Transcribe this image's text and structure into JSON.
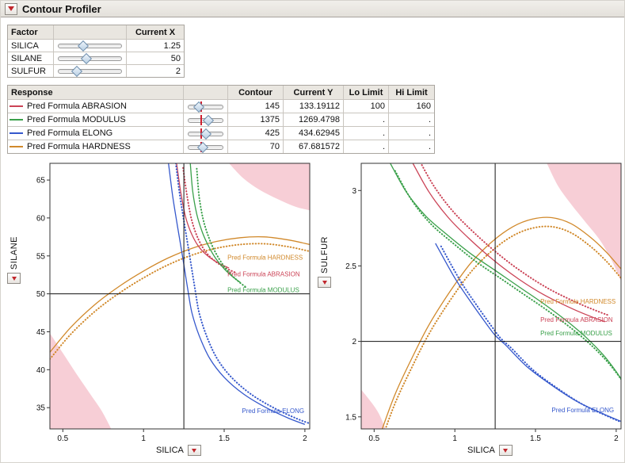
{
  "window": {
    "title": "Contour Profiler"
  },
  "icons": {
    "disclosure": "red-triangle-down",
    "axis_menu": "red-triangle-down"
  },
  "colors": {
    "accent_red": "#c1272d",
    "limit_shade": "#f7ced6",
    "header_bg": "#e9e6e0"
  },
  "factor_panel": {
    "headers": {
      "factor": "Factor",
      "current_x": "Current X"
    },
    "rows": [
      {
        "name": "SILICA",
        "value": "1.25",
        "slider_pos": 0.4
      },
      {
        "name": "SILANE",
        "value": "50",
        "slider_pos": 0.45
      },
      {
        "name": "SULFUR",
        "value": "2",
        "slider_pos": 0.3
      }
    ]
  },
  "response_panel": {
    "headers": {
      "response": "Response",
      "contour": "Contour",
      "current_y": "Current Y",
      "lo_limit": "Lo Limit",
      "hi_limit": "Hi Limit"
    },
    "rows": [
      {
        "name": "Pred Formula ABRASION",
        "color": "#cb4356",
        "contour": "145",
        "current_y": "133.19112",
        "lo_limit": "100",
        "hi_limit": "160",
        "slider_pos": 0.3,
        "marker_pos": 0.38
      },
      {
        "name": "Pred Formula MODULUS",
        "color": "#3aa04a",
        "contour": "1375",
        "current_y": "1269.4798",
        "lo_limit": ".",
        "hi_limit": ".",
        "slider_pos": 0.58,
        "marker_pos": 0.38
      },
      {
        "name": "Pred Formula ELONG",
        "color": "#3558cc",
        "contour": "425",
        "current_y": "434.62945",
        "lo_limit": ".",
        "hi_limit": ".",
        "slider_pos": 0.5,
        "marker_pos": 0.38
      },
      {
        "name": "Pred Formula HARDNESS",
        "color": "#d1892b",
        "contour": "70",
        "current_y": "67.681572",
        "lo_limit": ".",
        "hi_limit": ".",
        "slider_pos": 0.42,
        "marker_pos": 0.38
      }
    ]
  },
  "chart_data": [
    {
      "type": "contour",
      "xlabel": "SILICA",
      "ylabel": "SILANE",
      "xlim": [
        0.42,
        2.03
      ],
      "ylim": [
        32.2,
        67.2
      ],
      "xticks": [
        0.5,
        1,
        1.5,
        2
      ],
      "yticks": [
        35,
        40,
        45,
        50,
        55,
        60,
        65
      ],
      "crosshair": {
        "x": 1.25,
        "y": 50
      },
      "regions": [
        {
          "name": "limit-shade-bottom-left",
          "color": "#f7ced6",
          "curve": [
            [
              0.42,
              44.8
            ],
            [
              0.5,
              42.2
            ],
            [
              0.58,
              39.6
            ],
            [
              0.66,
              37.1
            ],
            [
              0.74,
              34.6
            ],
            [
              0.8,
              32.2
            ]
          ],
          "close": [
            [
              0.42,
              32.2
            ]
          ]
        },
        {
          "name": "limit-shade-top-right",
          "color": "#f7ced6",
          "curve": [
            [
              1.53,
              67.2
            ],
            [
              1.62,
              65.2
            ],
            [
              1.72,
              63.7
            ],
            [
              1.83,
              62.5
            ],
            [
              1.94,
              61.5
            ],
            [
              2.03,
              61.0
            ]
          ],
          "close": [
            [
              2.03,
              67.2
            ]
          ]
        }
      ],
      "series": [
        {
          "name": "Pred Formula HARDNESS",
          "color": "#d1892b",
          "contour": 70,
          "points": [
            [
              0.42,
              42.3
            ],
            [
              0.55,
              45.6
            ],
            [
              0.7,
              48.6
            ],
            [
              0.85,
              51.0
            ],
            [
              1.0,
              53.0
            ],
            [
              1.15,
              54.7
            ],
            [
              1.3,
              56.0
            ],
            [
              1.45,
              56.9
            ],
            [
              1.6,
              57.4
            ],
            [
              1.75,
              57.5
            ],
            [
              1.9,
              57.1
            ],
            [
              2.03,
              56.5
            ]
          ],
          "dotted_offset": [
            0,
            -0.9
          ]
        },
        {
          "name": "Pred Formula ABRASION",
          "color": "#cb4356",
          "contour": 145,
          "points": [
            [
              1.205,
              67.2
            ],
            [
              1.23,
              63.5
            ],
            [
              1.26,
              60.2
            ],
            [
              1.3,
              57.8
            ],
            [
              1.35,
              56.0
            ],
            [
              1.41,
              54.8
            ],
            [
              1.47,
              54.0
            ],
            [
              1.53,
              53.4
            ]
          ],
          "dotted_offset": [
            0.04,
            -0.6
          ]
        },
        {
          "name": "Pred Formula MODULUS",
          "color": "#3aa04a",
          "contour": 1375,
          "points": [
            [
              1.29,
              67.2
            ],
            [
              1.305,
              63.5
            ],
            [
              1.33,
              60.5
            ],
            [
              1.365,
              58.1
            ],
            [
              1.405,
              56.2
            ],
            [
              1.45,
              54.6
            ],
            [
              1.5,
              53.3
            ],
            [
              1.55,
              52.3
            ],
            [
              1.6,
              51.5
            ]
          ],
          "dotted_offset": [
            0.04,
            -0.7
          ]
        },
        {
          "name": "Pred Formula ELONG",
          "color": "#3558cc",
          "contour": 425,
          "points": [
            [
              1.155,
              67.2
            ],
            [
              1.18,
              63.0
            ],
            [
              1.21,
              59.0
            ],
            [
              1.245,
              54.5
            ],
            [
              1.275,
              50.5
            ],
            [
              1.3,
              47.5
            ],
            [
              1.345,
              44.5
            ],
            [
              1.41,
              41.5
            ],
            [
              1.5,
              39.0
            ],
            [
              1.62,
              36.8
            ],
            [
              1.76,
              35.0
            ],
            [
              1.9,
              33.6
            ],
            [
              2.0,
              32.8
            ]
          ],
          "dotted_offset": [
            0.045,
            0
          ]
        }
      ],
      "labels": [
        {
          "text": "Pred Formula HARDNESS",
          "color": "#d1892b",
          "x": 1.52,
          "y": 54.5
        },
        {
          "text": "Pred Formula ABRASION",
          "color": "#cb4356",
          "x": 1.52,
          "y": 52.3
        },
        {
          "text": "Pred Formula MODULUS",
          "color": "#3aa04a",
          "x": 1.52,
          "y": 50.2
        },
        {
          "text": "Pred Formula ELONG",
          "color": "#3558cc",
          "x": 1.61,
          "y": 34.3
        }
      ]
    },
    {
      "type": "contour",
      "xlabel": "SILICA",
      "ylabel": "SULFUR",
      "xlim": [
        0.42,
        2.03
      ],
      "ylim": [
        1.42,
        3.18
      ],
      "xticks": [
        0.5,
        1,
        1.5,
        2
      ],
      "yticks": [
        1.5,
        2,
        2.5,
        3
      ],
      "crosshair": {
        "x": 1.25,
        "y": 2
      },
      "regions": [
        {
          "name": "limit-shade-bottom-left",
          "color": "#f7ced6",
          "curve": [
            [
              0.42,
              1.68
            ],
            [
              0.48,
              1.6
            ],
            [
              0.53,
              1.52
            ],
            [
              0.57,
              1.42
            ]
          ],
          "close": [
            [
              0.42,
              1.42
            ]
          ]
        },
        {
          "name": "limit-shade-top-right",
          "color": "#f7ced6",
          "curve": [
            [
              1.57,
              3.18
            ],
            [
              1.64,
              3.03
            ],
            [
              1.72,
              2.91
            ],
            [
              1.81,
              2.79
            ],
            [
              1.9,
              2.67
            ],
            [
              1.97,
              2.54
            ],
            [
              2.03,
              2.4
            ]
          ],
          "close": [
            [
              2.03,
              3.18
            ]
          ]
        }
      ],
      "series": [
        {
          "name": "Pred Formula HARDNESS",
          "color": "#d1892b",
          "contour": 70,
          "points": [
            [
              0.55,
              1.42
            ],
            [
              0.63,
              1.65
            ],
            [
              0.73,
              1.88
            ],
            [
              0.84,
              2.11
            ],
            [
              0.97,
              2.33
            ],
            [
              1.1,
              2.52
            ],
            [
              1.23,
              2.66
            ],
            [
              1.36,
              2.76
            ],
            [
              1.48,
              2.81
            ],
            [
              1.6,
              2.82
            ],
            [
              1.72,
              2.78
            ],
            [
              1.84,
              2.69
            ],
            [
              1.94,
              2.59
            ],
            [
              2.03,
              2.48
            ]
          ],
          "dotted_offset": [
            0,
            -0.06
          ]
        },
        {
          "name": "Pred Formula ABRASION",
          "color": "#cb4356",
          "contour": 145,
          "points": [
            [
              0.74,
              3.18
            ],
            [
              0.84,
              2.99
            ],
            [
              0.96,
              2.82
            ],
            [
              1.1,
              2.67
            ],
            [
              1.25,
              2.53
            ],
            [
              1.4,
              2.41
            ],
            [
              1.55,
              2.31
            ],
            [
              1.7,
              2.23
            ],
            [
              1.83,
              2.17
            ],
            [
              1.93,
              2.13
            ]
          ],
          "dotted_offset": [
            0.03,
            0.04
          ]
        },
        {
          "name": "Pred Formula MODULUS",
          "color": "#3aa04a",
          "contour": 1375,
          "points": [
            [
              0.6,
              3.18
            ],
            [
              0.7,
              2.99
            ],
            [
              0.82,
              2.83
            ],
            [
              0.96,
              2.7
            ],
            [
              1.1,
              2.58
            ],
            [
              1.25,
              2.47
            ],
            [
              1.4,
              2.36
            ],
            [
              1.55,
              2.25
            ],
            [
              1.7,
              2.13
            ],
            [
              1.82,
              2.02
            ],
            [
              1.92,
              1.91
            ],
            [
              2.0,
              1.8
            ],
            [
              2.03,
              1.75
            ]
          ],
          "dotted_offset": [
            0.03,
            -0.05
          ]
        },
        {
          "name": "Pred Formula ELONG",
          "color": "#3558cc",
          "contour": 425,
          "points": [
            [
              0.88,
              2.65
            ],
            [
              1.0,
              2.42
            ],
            [
              1.1,
              2.26
            ],
            [
              1.2,
              2.11
            ],
            [
              1.25,
              2.04
            ],
            [
              1.32,
              1.97
            ],
            [
              1.45,
              1.83
            ],
            [
              1.6,
              1.71
            ],
            [
              1.76,
              1.6
            ],
            [
              1.92,
              1.52
            ],
            [
              2.03,
              1.47
            ]
          ],
          "dotted_offset": [
            0.035,
            -0.02
          ]
        }
      ],
      "labels": [
        {
          "text": "Pred Formula HARDNESS",
          "color": "#d1892b",
          "x": 1.53,
          "y": 2.25
        },
        {
          "text": "Pred Formula ABRASION",
          "color": "#cb4356",
          "x": 1.53,
          "y": 2.13
        },
        {
          "text": "Pred Formula MODULUS",
          "color": "#3aa04a",
          "x": 1.53,
          "y": 2.04
        },
        {
          "text": "Pred Formula ELONG",
          "color": "#3558cc",
          "x": 1.6,
          "y": 1.53
        }
      ]
    }
  ]
}
